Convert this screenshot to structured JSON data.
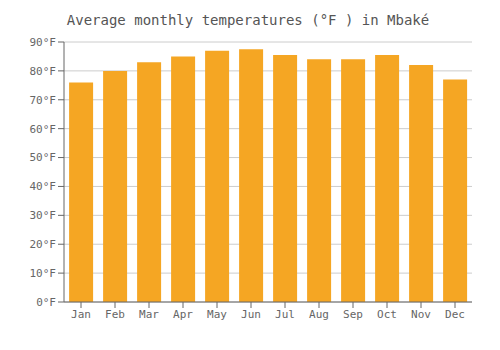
{
  "chart_data": {
    "type": "bar",
    "title": "Average monthly temperatures (°F ) in Mbaké",
    "categories": [
      "Jan",
      "Feb",
      "Mar",
      "Apr",
      "May",
      "Jun",
      "Jul",
      "Aug",
      "Sep",
      "Oct",
      "Nov",
      "Dec"
    ],
    "values": [
      76,
      80,
      83,
      85,
      87,
      87.5,
      85.5,
      84,
      84,
      85.5,
      82,
      77
    ],
    "color": "#F5A623",
    "ylim": [
      0,
      90
    ],
    "yticks": [
      {
        "value": 0,
        "label": "0°F"
      },
      {
        "value": 10,
        "label": "10°F"
      },
      {
        "value": 20,
        "label": "20°F"
      },
      {
        "value": 30,
        "label": "30°F"
      },
      {
        "value": 40,
        "label": "40°F"
      },
      {
        "value": 50,
        "label": "50°F"
      },
      {
        "value": 60,
        "label": "60°F"
      },
      {
        "value": 70,
        "label": "70°F"
      },
      {
        "value": 80,
        "label": "80°F"
      },
      {
        "value": 90,
        "label": "90°F"
      }
    ],
    "grid": true
  }
}
